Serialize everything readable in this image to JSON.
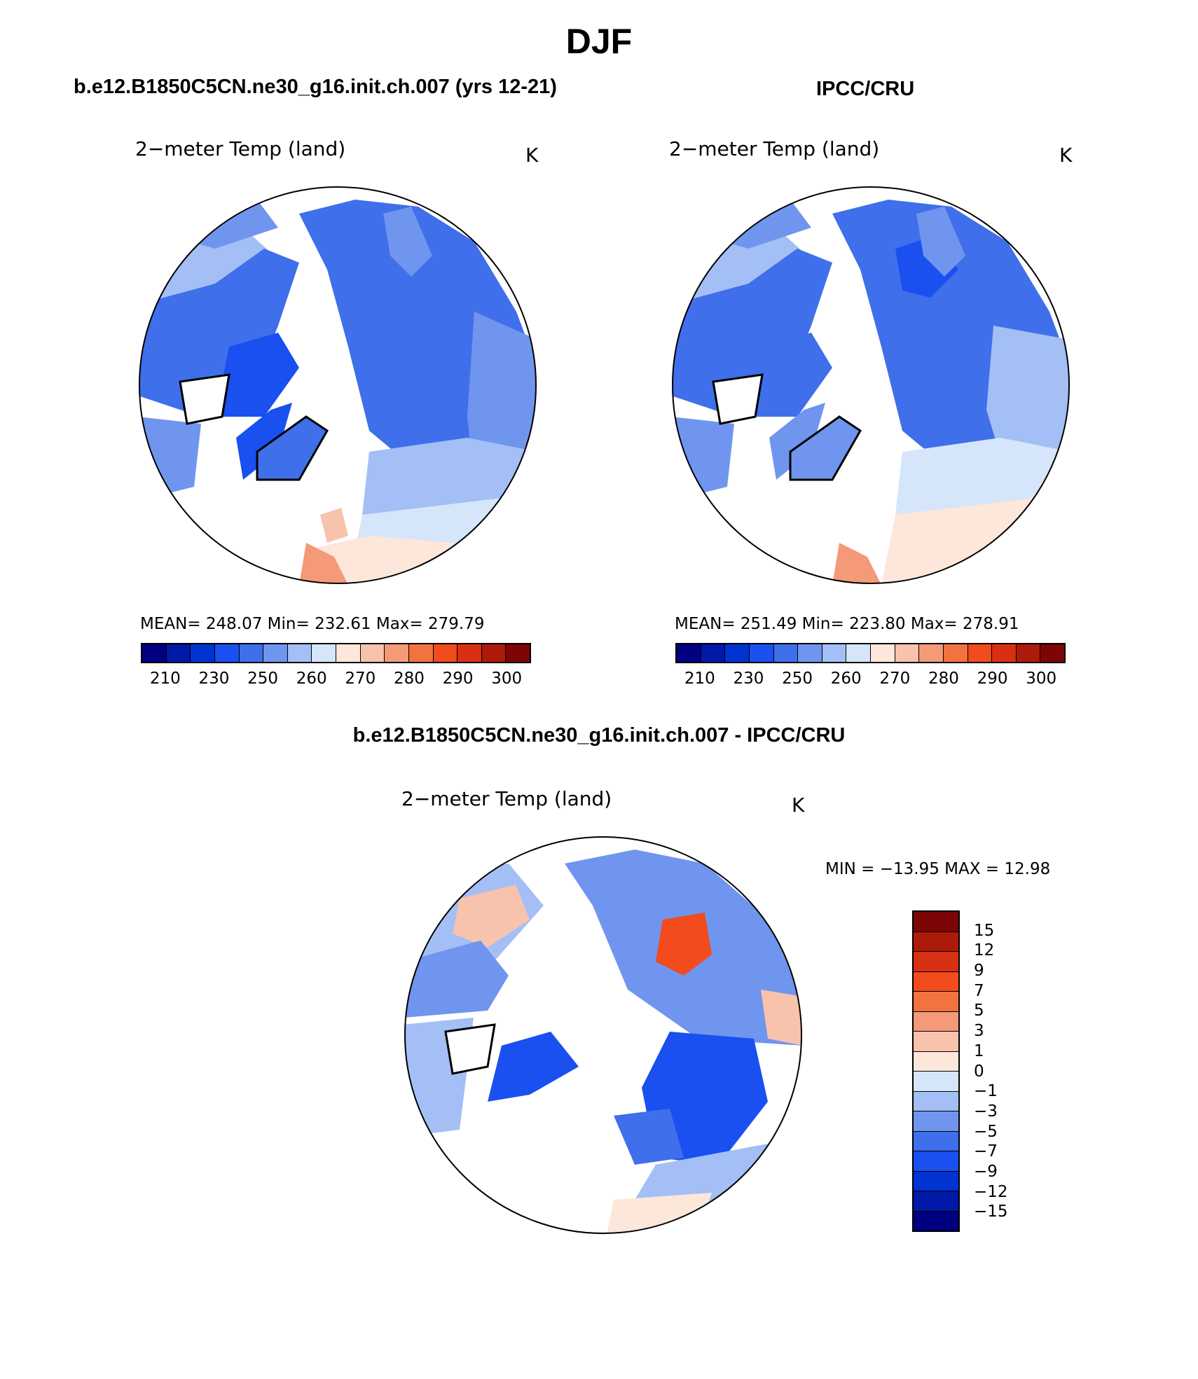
{
  "title": "DJF",
  "panels": {
    "model": {
      "header": "b.e12.B1850C5CN.ne30_g16.init.ch.007 (yrs 12-21)",
      "variable": "2−meter Temp (land)",
      "units": "K",
      "stats": "MEAN= 248.07   Min= 232.61   Max= 279.79"
    },
    "obs": {
      "header": "IPCC/CRU",
      "variable": "2−meter Temp (land)",
      "units": "K",
      "stats": "MEAN= 251.49   Min= 223.80   Max= 278.91"
    },
    "diff": {
      "header": "b.e12.B1850C5CN.ne30_g16.init.ch.007 - IPCC/CRU",
      "variable": "2−meter Temp (land)",
      "units": "K",
      "stats": "MIN = −13.95 MAX =   12.98"
    }
  },
  "colorbar_abs": {
    "colors": [
      "#000080",
      "#0019a8",
      "#0033d0",
      "#1a4ff0",
      "#3f6fea",
      "#6f95ee",
      "#a3bff5",
      "#d6e6fa",
      "#fde6da",
      "#f8c3ac",
      "#f49a78",
      "#f27240",
      "#f24b1c",
      "#d83012",
      "#ad1a0a",
      "#7d0505"
    ],
    "labels": [
      "210",
      "230",
      "250",
      "260",
      "270",
      "280",
      "290",
      "300"
    ]
  },
  "colorbar_diff": {
    "colors": [
      "#7d0505",
      "#ad1a0a",
      "#d83012",
      "#f24b1c",
      "#f27240",
      "#f49a78",
      "#f8c3ac",
      "#fde6da",
      "#d6e6fa",
      "#a3bff5",
      "#6f95ee",
      "#3f6fea",
      "#1a4ff0",
      "#0033d0",
      "#0019a8",
      "#000080"
    ],
    "labels": [
      "15",
      "12",
      "9",
      "7",
      "5",
      "3",
      "1",
      "0",
      "−1",
      "−3",
      "−5",
      "−7",
      "−9",
      "−12",
      "−15"
    ]
  }
}
